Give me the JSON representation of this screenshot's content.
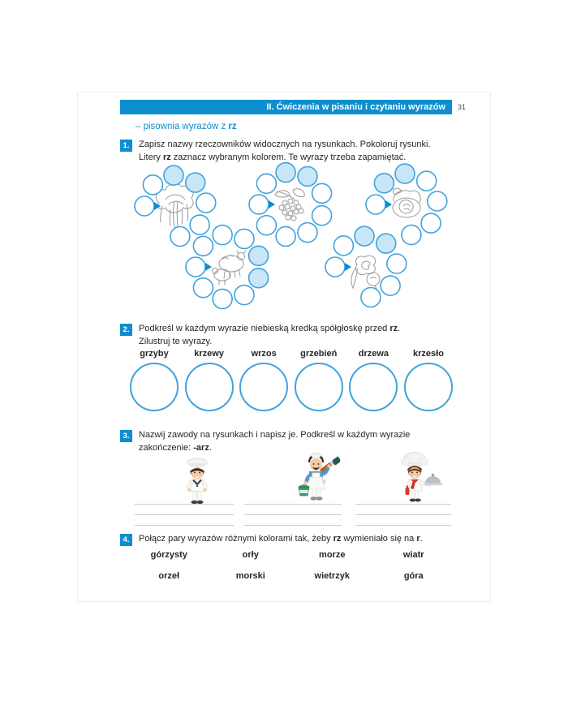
{
  "colors": {
    "accent_blue": "#0d8ecf",
    "circle_stroke": "#41a3dc",
    "circle_fill": "#c9e6f6",
    "line_art_gray": "#9a9a9a",
    "writing_line_gray": "#cccccc",
    "text_dark": "#262626"
  },
  "header": {
    "title": "II. Ćwiczenia w pisaniu i czytaniu wyrazów",
    "page_number": "31"
  },
  "subtitle": {
    "pre": "– pisownia wyrazów z ",
    "bold": "rz"
  },
  "exercise1": {
    "number": "1.",
    "line1": "Zapisz nazwy rzeczowników widocznych na rysunkach. Pokoloruj rysunki.",
    "line2_pre": "Litery ",
    "line2_bold": "rz",
    "line2_post": " zaznacz wybranym kolorem. Te wyrazy trzeba zapamiętać.",
    "clusters": [
      {
        "illustration": "willow-tree",
        "circle_count": 7,
        "filled_positions": [
          3,
          4
        ]
      },
      {
        "illustration": "rowan-berries",
        "circle_count": 9,
        "filled_positions": [
          3,
          4
        ]
      },
      {
        "illustration": "walnut",
        "circle_count": 7,
        "filled_positions": [
          2,
          3
        ]
      },
      {
        "illustration": "sheep-with-lamb",
        "circle_count": 9,
        "filled_positions": [
          5,
          6
        ]
      },
      {
        "illustration": "vegetables",
        "circle_count": 7,
        "filled_positions": [
          3,
          4
        ]
      }
    ]
  },
  "exercise2": {
    "number": "2.",
    "line1_pre": "Podkreśl w każdym wyrazie niebieską kredką spółgłoskę przed ",
    "line1_bold": "rz",
    "line1_post": ".",
    "line2": "Zilustruj te wyrazy.",
    "words": [
      "grzyby",
      "krzewy",
      "wrzos",
      "grzebień",
      "drzewa",
      "krzesło"
    ]
  },
  "exercise3": {
    "number": "3.",
    "line1": "Nazwij zawody na rysunkach i napisz je. Podkreśl w każdym wyrazie",
    "line2_pre": "zakończenie: ",
    "line2_bold": "-arz",
    "line2_post": ".",
    "professions": [
      "sailor",
      "painter",
      "cook"
    ]
  },
  "exercise4": {
    "number": "4.",
    "line_pre": "Połącz pary wyrazów różnymi kolorami tak, żeby ",
    "line_bold1": "rz",
    "line_mid": " wymieniało się na ",
    "line_bold2": "r",
    "line_post": ".",
    "row1": [
      "górzysty",
      "orły",
      "morze",
      "wiatr"
    ],
    "row2": [
      "orzeł",
      "morski",
      "wietrzyk",
      "góra"
    ]
  }
}
